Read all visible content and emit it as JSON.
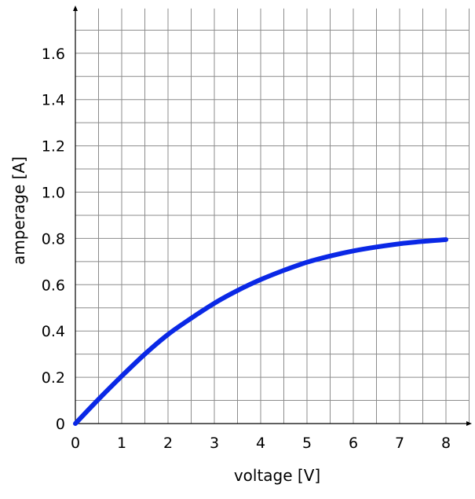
{
  "chart_data": {
    "type": "line",
    "title": "",
    "xlabel": "voltage [V]",
    "ylabel": "amperage [A]",
    "xlim": [
      0,
      8.5
    ],
    "ylim": [
      0,
      1.8
    ],
    "grid": true,
    "x_ticks": [
      0,
      1,
      2,
      3,
      4,
      5,
      6,
      7,
      8
    ],
    "x_tick_labels": [
      "0",
      "1",
      "2",
      "3",
      "4",
      "5",
      "6",
      "7",
      "8"
    ],
    "y_ticks": [
      0,
      0.2,
      0.4,
      0.6,
      0.8,
      1.0,
      1.2,
      1.4,
      1.6
    ],
    "y_tick_labels": [
      "0",
      "0.2",
      "0.4",
      "0.6",
      "0.8",
      "1.0",
      "1.2",
      "1.4",
      "1.6"
    ],
    "series": [
      {
        "color": "#0a28e6",
        "x": [
          0,
          0.5,
          1,
          1.5,
          2,
          2.5,
          3,
          3.5,
          4,
          4.5,
          5,
          5.5,
          6,
          6.5,
          7,
          7.5,
          8
        ],
        "y": [
          0,
          0.105,
          0.205,
          0.3,
          0.385,
          0.455,
          0.52,
          0.575,
          0.622,
          0.662,
          0.697,
          0.724,
          0.746,
          0.763,
          0.777,
          0.787,
          0.795
        ]
      }
    ]
  }
}
